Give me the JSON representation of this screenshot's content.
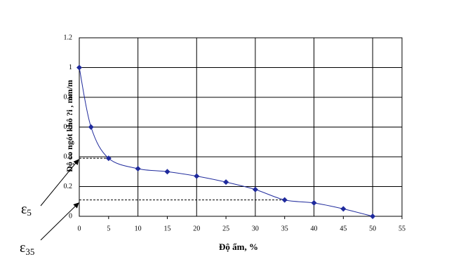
{
  "chart_data": {
    "type": "line",
    "xlabel": "Độ ẩm, %",
    "ylabel": "Độ co ngót khô ?i  , mm/m",
    "x": [
      0,
      2,
      5,
      10,
      15,
      20,
      25,
      30,
      35,
      40,
      45,
      50
    ],
    "series": [
      {
        "name": "Độ co ngót khô",
        "color": "#1f2a9c",
        "values": [
          1.0,
          0.6,
          0.39,
          0.32,
          0.3,
          0.27,
          0.23,
          0.18,
          0.11,
          0.09,
          0.05,
          0
        ]
      }
    ],
    "xlim": [
      0,
      55
    ],
    "xticks": [
      0,
      5,
      10,
      15,
      20,
      25,
      30,
      35,
      40,
      45,
      50,
      55
    ],
    "ylim": [
      0,
      1.2
    ],
    "yticks": [
      0,
      0.2,
      0.4,
      0.6,
      0.8,
      1,
      1.2
    ],
    "grid": true,
    "annotations": [
      {
        "symbol": "ε",
        "sub": "5"
      },
      {
        "symbol": "ε",
        "sub": "35"
      }
    ]
  }
}
